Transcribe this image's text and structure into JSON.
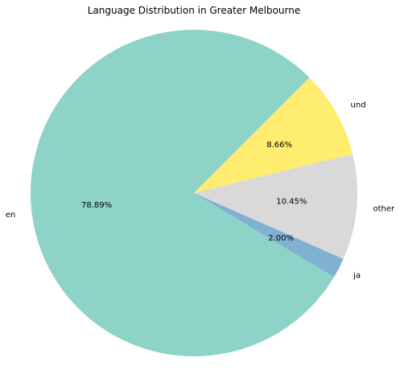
{
  "chart_data": {
    "type": "pie",
    "title": "Language Distribution in Greater Melbourne",
    "slices": [
      {
        "label": "en",
        "value": 78.89,
        "pct_text": "78.89%",
        "color": "#8dd3c7"
      },
      {
        "label": "ja",
        "value": 2.0,
        "pct_text": "2.00%",
        "color": "#80b1d3"
      },
      {
        "label": "other",
        "value": 10.45,
        "pct_text": "10.45%",
        "color": "#d9d9d9"
      },
      {
        "label": "und",
        "value": 8.66,
        "pct_text": "8.66%",
        "color": "#ffed6f"
      }
    ],
    "start_angle_deg": 45,
    "direction": "counterclockwise",
    "legend": "none"
  }
}
